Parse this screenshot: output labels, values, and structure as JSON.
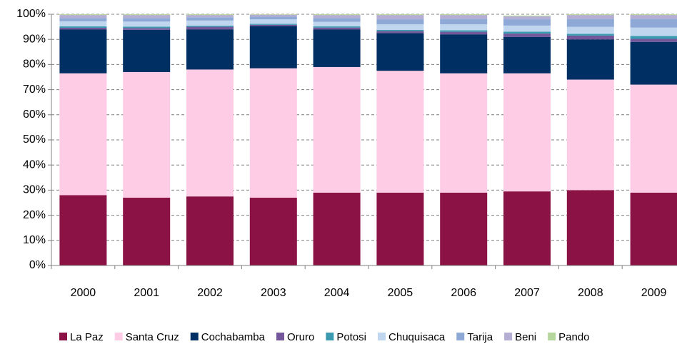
{
  "chart_data": {
    "type": "stacked_bar",
    "categories": [
      "2000",
      "2001",
      "2002",
      "2003",
      "2004",
      "2005",
      "2006",
      "2007",
      "2008",
      "2009"
    ],
    "series": [
      {
        "name": "La Paz",
        "color": "#8b1245",
        "values": [
          28,
          27,
          27.5,
          27,
          29,
          29,
          29,
          29.5,
          30,
          29
        ]
      },
      {
        "name": "Santa Cruz",
        "color": "#ffcce6",
        "values": [
          48.5,
          50,
          50.5,
          51.5,
          50,
          48.5,
          47.5,
          47,
          44,
          43
        ]
      },
      {
        "name": "Cochabamba",
        "color": "#002f63",
        "values": [
          17.5,
          16.8,
          16,
          16.8,
          15,
          15,
          15.5,
          14.5,
          16,
          17
        ]
      },
      {
        "name": "Oruro",
        "color": "#74569a",
        "values": [
          0.6,
          0.7,
          1,
          0.5,
          0.7,
          0.8,
          1,
          1.3,
          1.5,
          1.2
        ]
      },
      {
        "name": "Potosi",
        "color": "#3b9ab0",
        "values": [
          0.6,
          0.6,
          0.5,
          0.4,
          0.5,
          0.5,
          0.6,
          0.8,
          0.7,
          1.2
        ]
      },
      {
        "name": "Chuquisaca",
        "color": "#bfd6ee",
        "values": [
          2,
          2,
          2,
          1.8,
          1.8,
          2.2,
          2.4,
          2.4,
          2.8,
          3.3
        ]
      },
      {
        "name": "Tarija",
        "color": "#8fa9d6",
        "values": [
          1.3,
          1.4,
          1.3,
          1,
          1.5,
          2,
          2.2,
          2.5,
          3.2,
          3.5
        ]
      },
      {
        "name": "Beni",
        "color": "#b4aed4",
        "values": [
          1.2,
          1.2,
          0.9,
          0.8,
          1.2,
          1.7,
          1.5,
          1.2,
          1.5,
          1.5
        ]
      },
      {
        "name": "Pando",
        "color": "#b5d69c",
        "values": [
          0.3,
          0.3,
          0.3,
          0.2,
          0.3,
          0.3,
          0.3,
          0.3,
          0.3,
          0.3
        ]
      }
    ],
    "ylim": [
      0,
      100
    ],
    "yticks": [
      {
        "value": 0,
        "label": "0%"
      },
      {
        "value": 10,
        "label": "10%"
      },
      {
        "value": 20,
        "label": "20%"
      },
      {
        "value": 30,
        "label": "30%"
      },
      {
        "value": 40,
        "label": "40%"
      },
      {
        "value": 50,
        "label": "50%"
      },
      {
        "value": 60,
        "label": "60%"
      },
      {
        "value": 70,
        "label": "70%"
      },
      {
        "value": 80,
        "label": "80%"
      },
      {
        "value": 90,
        "label": "90%"
      },
      {
        "value": 100,
        "label": "100%"
      }
    ],
    "grid": true,
    "legend": "bottom"
  }
}
